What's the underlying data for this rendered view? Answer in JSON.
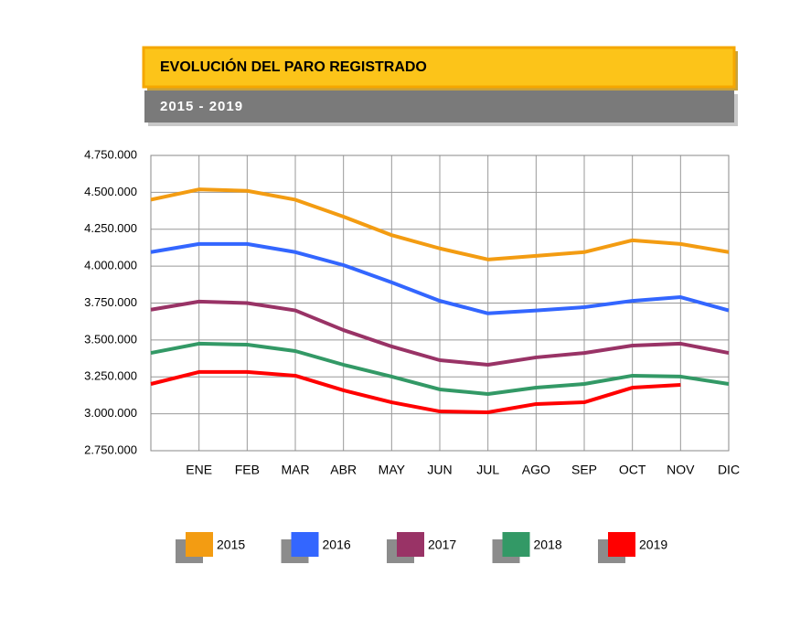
{
  "chart_data": {
    "type": "line",
    "title": "EVOLUCIÓN DEL PARO REGISTRADO",
    "subtitle": "2015 - 2019",
    "categories": [
      null,
      "ENE",
      "FEB",
      "MAR",
      "ABR",
      "MAY",
      "JUN",
      "JUL",
      "AGO",
      "SEP",
      "OCT",
      "NOV",
      "DIC"
    ],
    "series": [
      {
        "name": "2015",
        "color": "#f39c12",
        "values": [
          4450000,
          4520000,
          4510000,
          4450000,
          4335000,
          4210000,
          4120000,
          4045000,
          4070000,
          4095000,
          4175000,
          4150000,
          4095000
        ]
      },
      {
        "name": "2016",
        "color": "#3366ff",
        "values": [
          4095000,
          4150000,
          4150000,
          4095000,
          4007000,
          3890000,
          3765000,
          3680000,
          3700000,
          3722000,
          3765000,
          3790000,
          3700000
        ]
      },
      {
        "name": "2017",
        "color": "#993366",
        "values": [
          3705000,
          3760000,
          3750000,
          3700000,
          3567000,
          3456000,
          3363000,
          3332000,
          3382000,
          3412000,
          3462000,
          3475000,
          3412000
        ]
      },
      {
        "name": "2018",
        "color": "#339966",
        "values": [
          3412000,
          3475000,
          3468000,
          3425000,
          3332000,
          3252000,
          3165000,
          3134000,
          3177000,
          3202000,
          3258000,
          3252000,
          3202000
        ]
      },
      {
        "name": "2019",
        "color": "#ff0000",
        "values": [
          3202000,
          3283000,
          3283000,
          3258000,
          3159000,
          3078000,
          3016000,
          3010000,
          3066000,
          3078000,
          3177000,
          3196000,
          null
        ]
      }
    ],
    "ylim": [
      2750000,
      4750000
    ],
    "yticks": [
      {
        "value": 2750000,
        "label": "2.750.000"
      },
      {
        "value": 3000000,
        "label": "3.000.000"
      },
      {
        "value": 3250000,
        "label": "3.250.000"
      },
      {
        "value": 3500000,
        "label": "3.500.000"
      },
      {
        "value": 3750000,
        "label": "3.750.000"
      },
      {
        "value": 4000000,
        "label": "4.000.000"
      },
      {
        "value": 4250000,
        "label": "4.250.000"
      },
      {
        "value": 4500000,
        "label": "4.500.000"
      },
      {
        "value": 4750000,
        "label": "4.750.000"
      }
    ],
    "grid": true
  }
}
